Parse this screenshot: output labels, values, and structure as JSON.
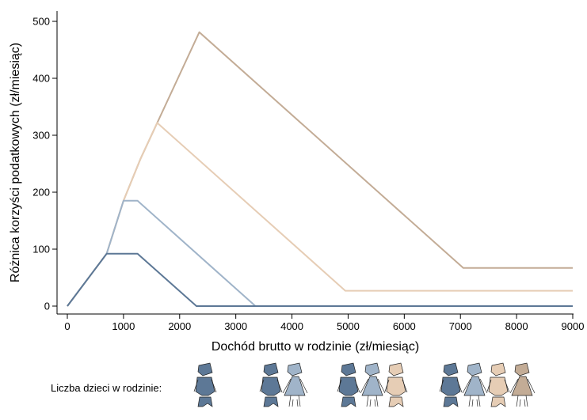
{
  "chart_data": {
    "type": "line",
    "xlabel": "Dochód brutto w rodzinie (zł/miesiąc)",
    "ylabel": "Różnica korzyści podatkowych (zł/miesiąc)",
    "xlim": [
      0,
      9000
    ],
    "ylim": [
      0,
      500
    ],
    "xticks": [
      0,
      1000,
      2000,
      3000,
      4000,
      5000,
      6000,
      7000,
      8000,
      9000
    ],
    "yticks": [
      0,
      100,
      200,
      300,
      400,
      500
    ],
    "grid": false,
    "series": [
      {
        "children": 1,
        "color": "#5d7896",
        "x": [
          0,
          700,
          1250,
          2300,
          9000
        ],
        "y": [
          0,
          92,
          92,
          0,
          0
        ]
      },
      {
        "children": 2,
        "color": "#a0b4c9",
        "x": [
          0,
          700,
          1000,
          1250,
          3350,
          9000
        ],
        "y": [
          0,
          92,
          185,
          185,
          0,
          0
        ]
      },
      {
        "children": 3,
        "color": "#e6cdb5",
        "x": [
          0,
          700,
          1000,
          1300,
          1600,
          4950,
          9000
        ],
        "y": [
          0,
          92,
          185,
          258,
          322,
          27,
          27
        ]
      },
      {
        "children": 4,
        "color": "#c3ac96",
        "x": [
          0,
          700,
          1000,
          1300,
          2350,
          7050,
          9000
        ],
        "y": [
          0,
          92,
          185,
          258,
          481,
          67,
          67
        ]
      }
    ]
  },
  "legend": {
    "label": "Liczba dzieci w rodzinie:",
    "groups": [
      {
        "children": 1,
        "colors": [
          "#5d7896"
        ]
      },
      {
        "children": 2,
        "colors": [
          "#5d7896",
          "#a0b4c9"
        ]
      },
      {
        "children": 3,
        "colors": [
          "#5d7896",
          "#a0b4c9",
          "#e6cdb5"
        ]
      },
      {
        "children": 4,
        "colors": [
          "#5d7896",
          "#a0b4c9",
          "#e6cdb5",
          "#c3ac96"
        ]
      }
    ]
  }
}
